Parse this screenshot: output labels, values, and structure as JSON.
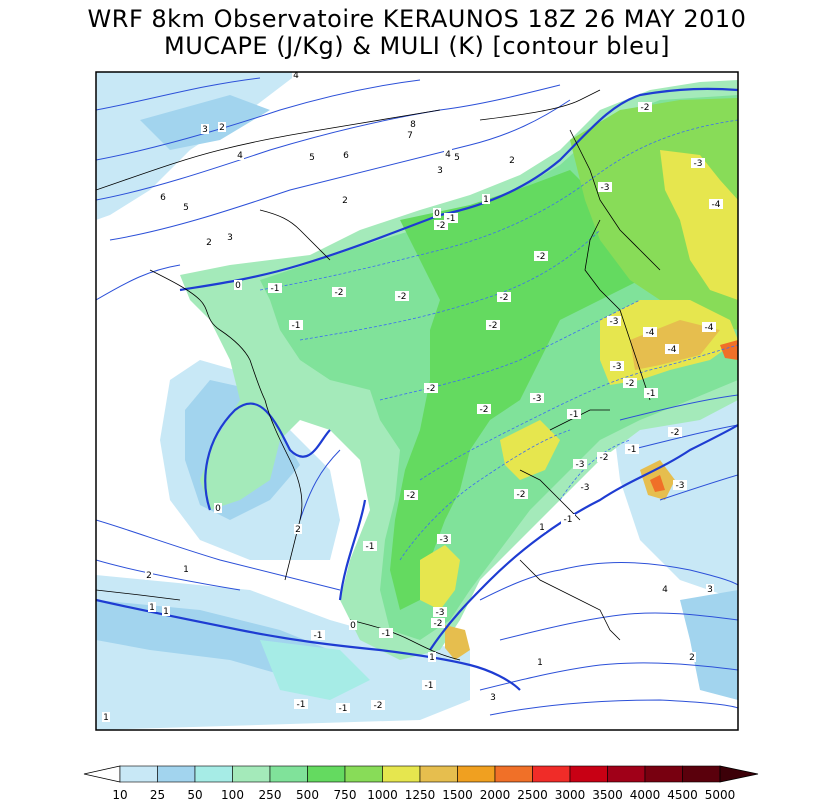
{
  "title_line1": "WRF 8km Observatoire KERAUNOS 18Z 26 MAY 2010",
  "title_line2": "MUCAPE (J/Kg) & MULI (K) [contour bleu]",
  "legend": {
    "values": [
      "10",
      "25",
      "50",
      "100",
      "250",
      "500",
      "750",
      "1000",
      "1250",
      "1500",
      "2000",
      "2500",
      "3000",
      "3500",
      "4000",
      "4500",
      "5000"
    ],
    "colors": [
      "#c8e8f6",
      "#a2d4ee",
      "#a6ece6",
      "#a4eaba",
      "#80e29a",
      "#64da60",
      "#88dc58",
      "#e6e64e",
      "#e6be4e",
      "#f0a020",
      "#f07028",
      "#f02c28",
      "#c80014",
      "#a00018",
      "#780010",
      "#5a000c",
      "#3c0008"
    ]
  },
  "contour_labels": [
    {
      "text": "4"
    },
    {
      "text": "3"
    },
    {
      "text": "2"
    },
    {
      "text": "4"
    },
    {
      "text": "5"
    },
    {
      "text": "6"
    },
    {
      "text": "5"
    },
    {
      "text": "6"
    },
    {
      "text": "7"
    },
    {
      "text": "8"
    },
    {
      "text": "4"
    },
    {
      "text": "5"
    },
    {
      "text": "3"
    },
    {
      "text": "2"
    },
    {
      "text": "2"
    },
    {
      "text": "2"
    },
    {
      "text": "3"
    },
    {
      "text": "1"
    },
    {
      "text": "0"
    },
    {
      "text": "-1"
    },
    {
      "text": "-2"
    },
    {
      "text": "-2"
    },
    {
      "text": "-3"
    },
    {
      "text": "-4"
    },
    {
      "text": "-3"
    },
    {
      "text": "0"
    },
    {
      "text": "-1"
    },
    {
      "text": "-2"
    },
    {
      "text": "-2"
    },
    {
      "text": "-2"
    },
    {
      "text": "-1"
    },
    {
      "text": "-2"
    },
    {
      "text": "-3"
    },
    {
      "text": "-4"
    },
    {
      "text": "-4"
    },
    {
      "text": "-4"
    },
    {
      "text": "-3"
    },
    {
      "text": "-2"
    },
    {
      "text": "-2"
    },
    {
      "text": "-1"
    },
    {
      "text": "-3"
    },
    {
      "text": "-2"
    },
    {
      "text": "-2"
    },
    {
      "text": "-1"
    },
    {
      "text": "-2"
    },
    {
      "text": "-3"
    },
    {
      "text": "-1"
    },
    {
      "text": "-3"
    },
    {
      "text": "-2"
    },
    {
      "text": "-2"
    },
    {
      "text": "-1"
    },
    {
      "text": "-3"
    },
    {
      "text": "-2"
    },
    {
      "text": "-3"
    },
    {
      "text": "-2"
    },
    {
      "text": "-1"
    },
    {
      "text": "-1"
    },
    {
      "text": "-1"
    },
    {
      "text": "1"
    },
    {
      "text": "0"
    },
    {
      "text": "2"
    },
    {
      "text": "1"
    },
    {
      "text": "2"
    },
    {
      "text": "1"
    },
    {
      "text": "1"
    },
    {
      "text": "0"
    },
    {
      "text": "-1"
    },
    {
      "text": "1"
    },
    {
      "text": "-1"
    },
    {
      "text": "-2"
    },
    {
      "text": "-1"
    },
    {
      "text": "-3"
    },
    {
      "text": "3"
    },
    {
      "text": "1"
    },
    {
      "text": "4"
    },
    {
      "text": "3"
    },
    {
      "text": "2"
    },
    {
      "text": "1"
    }
  ]
}
